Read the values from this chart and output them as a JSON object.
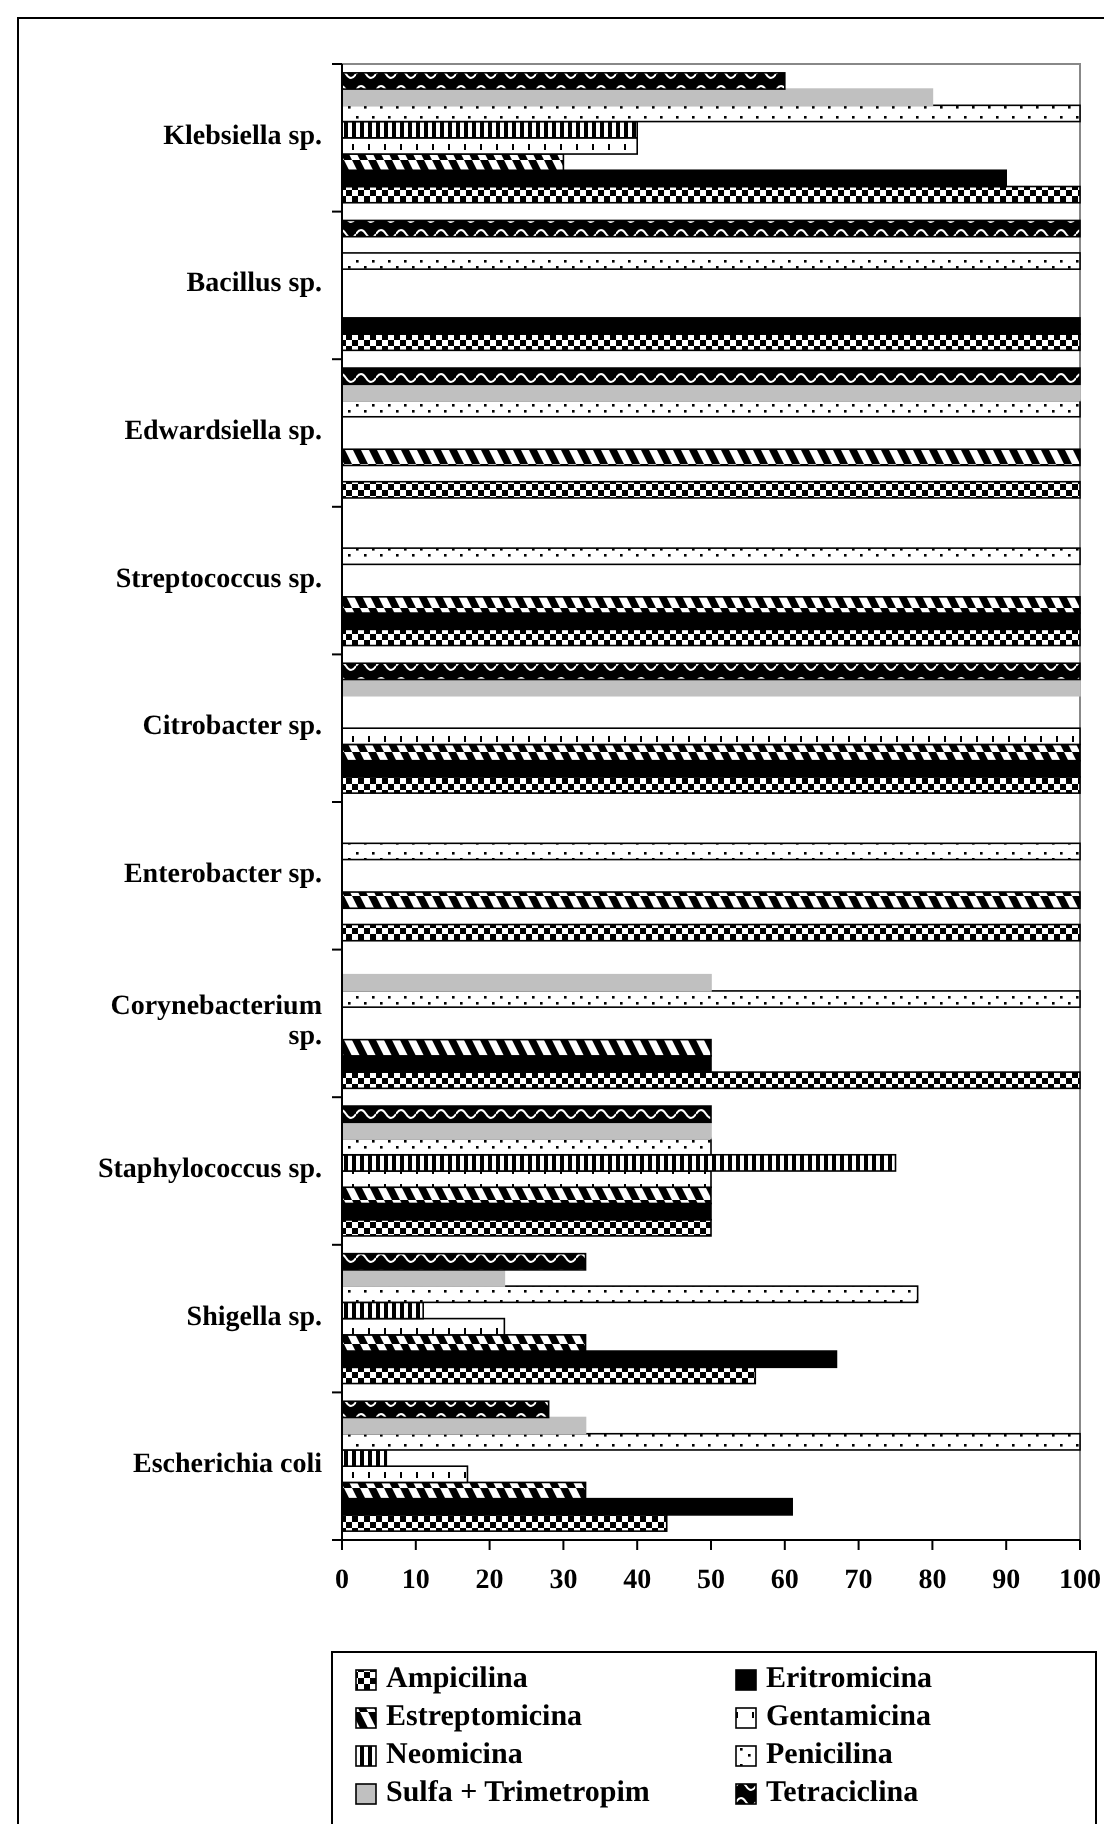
{
  "chart_data": {
    "type": "bar",
    "orientation": "horizontal",
    "categories": [
      "Klebsiella sp.",
      "Bacillus sp.",
      "Edwardsiella sp.",
      "Streptococcus sp.",
      "Citrobacter sp.",
      "Enterobacter sp.",
      "Corynebacterium sp.",
      "Staphylococcus sp.",
      "Shigella sp.",
      "Escherichia coli"
    ],
    "series": [
      {
        "name": "Ampicilina",
        "color": "#000000",
        "values": [
          100,
          100,
          100,
          100,
          100,
          100,
          100,
          50,
          56,
          44
        ]
      },
      {
        "name": "Eritromicina",
        "color": "#000000",
        "values": [
          90,
          100,
          null,
          100,
          100,
          null,
          50,
          50,
          67,
          61
        ]
      },
      {
        "name": "Estreptomicina",
        "color": "#000000",
        "values": [
          30,
          null,
          100,
          100,
          100,
          100,
          50,
          50,
          33,
          33
        ]
      },
      {
        "name": "Gentamicina",
        "color": "#000000",
        "values": [
          40,
          null,
          null,
          null,
          100,
          null,
          null,
          50,
          22,
          17
        ]
      },
      {
        "name": "Neomicina",
        "color": "#000000",
        "values": [
          40,
          null,
          null,
          null,
          null,
          null,
          null,
          75,
          11,
          6
        ]
      },
      {
        "name": "Penicilina",
        "color": "#000000",
        "values": [
          100,
          100,
          100,
          100,
          null,
          100,
          100,
          50,
          78,
          100
        ]
      },
      {
        "name": "Sulfa + Trimetropim",
        "color": "#c0c0c0",
        "values": [
          80,
          null,
          100,
          null,
          100,
          null,
          50,
          50,
          22,
          33
        ]
      },
      {
        "name": "Tetraciclina",
        "color": "#000000",
        "values": [
          60,
          100,
          100,
          null,
          100,
          null,
          null,
          50,
          33,
          28
        ]
      }
    ],
    "xlim": [
      0,
      100
    ],
    "xticks": [
      0,
      10,
      20,
      30,
      40,
      50,
      60,
      70,
      80,
      90,
      100
    ],
    "grid": false,
    "legend": "bottom"
  }
}
